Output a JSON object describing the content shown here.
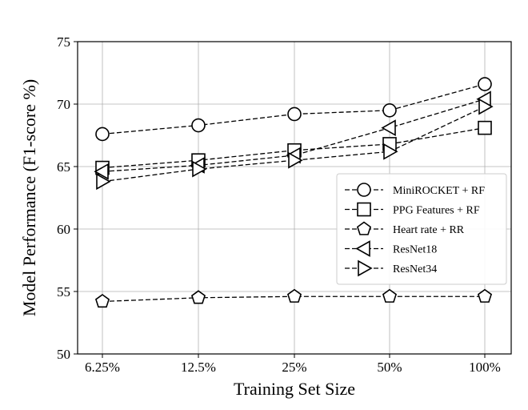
{
  "chart_data": {
    "type": "line",
    "title": "",
    "xlabel": "Training Set Size",
    "ylabel": "Model Performance (F1-score %)",
    "categories": [
      "6.25%",
      "12.5%",
      "25%",
      "50%",
      "100%"
    ],
    "ylim": [
      50,
      75
    ],
    "yticks": [
      50,
      55,
      60,
      65,
      70,
      75
    ],
    "grid": true,
    "legend_position": "right",
    "series": [
      {
        "name": "MiniROCKET + RF",
        "marker": "circle",
        "values": [
          67.6,
          68.3,
          69.2,
          69.5,
          71.6
        ]
      },
      {
        "name": "PPG Features + RF",
        "marker": "square",
        "values": [
          64.9,
          65.5,
          66.3,
          66.8,
          68.1
        ]
      },
      {
        "name": "Heart rate + RR",
        "marker": "pentagon",
        "values": [
          54.2,
          54.5,
          54.6,
          54.6,
          54.6
        ]
      },
      {
        "name": "ResNet18",
        "marker": "triangle-left",
        "values": [
          64.6,
          65.1,
          65.9,
          68.1,
          70.4
        ]
      },
      {
        "name": "ResNet34",
        "marker": "triangle-right",
        "values": [
          63.8,
          64.8,
          65.5,
          66.2,
          69.8
        ]
      }
    ]
  }
}
